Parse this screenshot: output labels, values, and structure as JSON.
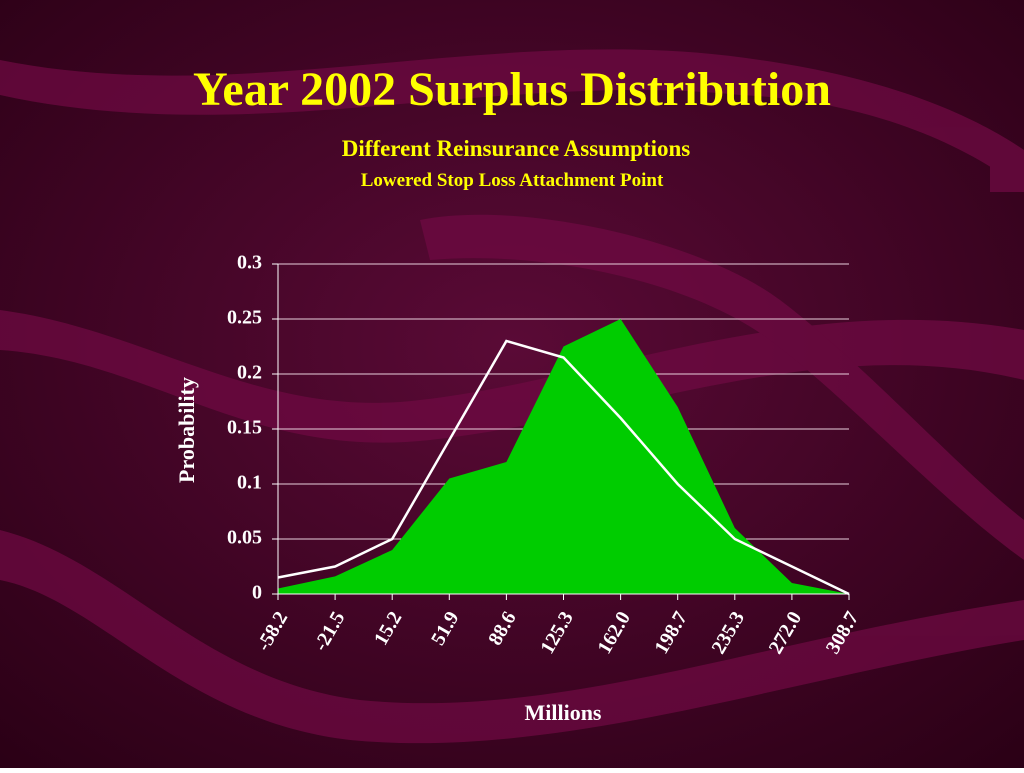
{
  "chart_data": {
    "type": "area",
    "title": "Year 2002 Surplus Distribution",
    "subtitle": "Different Reinsurance Assumptions",
    "subtitle2": "Lowered Stop Loss Attachment Point",
    "x_label": "Millions",
    "y_label": "Probability",
    "categories": [
      "-58.2",
      "-21.5",
      "15.2",
      "51.9",
      "88.6",
      "125.3",
      "162.0",
      "198.7",
      "235.3",
      "272.0",
      "308.7"
    ],
    "series": [
      {
        "type": "area",
        "color": "#00cc00",
        "values": [
          0.005,
          0.016,
          0.04,
          0.105,
          0.12,
          0.225,
          0.25,
          0.17,
          0.06,
          0.01,
          0
        ]
      },
      {
        "type": "line",
        "color": "#ffffff",
        "values": [
          0.015,
          0.025,
          0.05,
          0.14,
          0.23,
          0.215,
          0.16,
          0.1,
          0.05,
          0.025,
          0
        ]
      }
    ],
    "ylim": [
      0,
      0.3
    ],
    "yticks": [
      0,
      0.05,
      0.1,
      0.15,
      0.2,
      0.25,
      0.3
    ],
    "grid": true
  }
}
